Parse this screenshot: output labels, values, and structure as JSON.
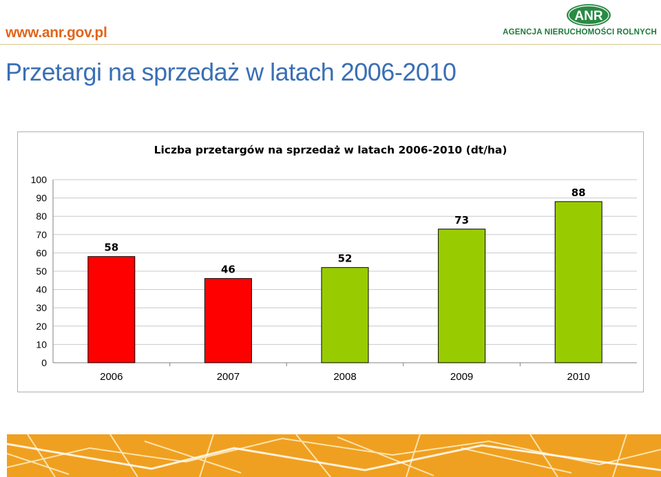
{
  "header": {
    "site_url": "www.anr.gov.pl",
    "logo_text": "ANR",
    "agency_name": "AGENCJA NIERUCHOMOŚCI ROLNYCH",
    "brand_green": "#2a8a44",
    "accent_orange": "#e2651b"
  },
  "page": {
    "title": "Przetargi na sprzedaż w latach 2006-2010"
  },
  "chart_data": {
    "type": "bar",
    "title": "Liczba przetargów na sprzedaż w latach 2006-2010 (dt/ha)",
    "categories": [
      "2006",
      "2007",
      "2008",
      "2009",
      "2010"
    ],
    "values": [
      58,
      46,
      52,
      73,
      88
    ],
    "bar_colors": [
      "#ff0000",
      "#ff0000",
      "#99cc00",
      "#99cc00",
      "#99cc00"
    ],
    "ylim": [
      0,
      100
    ],
    "yticks": [
      0,
      10,
      20,
      30,
      40,
      50,
      60,
      70,
      80,
      90,
      100
    ],
    "grid": true,
    "legend": "none",
    "data_labels": true
  }
}
